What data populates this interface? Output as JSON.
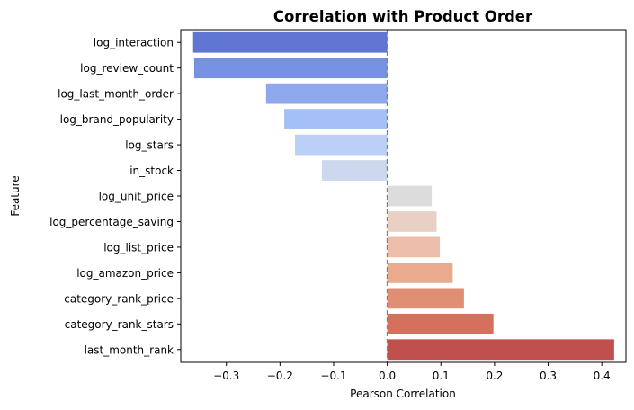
{
  "chart_data": {
    "type": "bar",
    "orientation": "horizontal",
    "title": "Correlation with Product Order",
    "xlabel": "Pearson Correlation",
    "ylabel": "Feature",
    "xlim": [
      -0.385,
      0.445
    ],
    "xticks": [
      -0.3,
      -0.2,
      -0.1,
      0.0,
      0.1,
      0.2,
      0.3,
      0.4
    ],
    "xtick_labels": [
      "−0.3",
      "−0.2",
      "−0.1",
      "0.0",
      "0.1",
      "0.2",
      "0.3",
      "0.4"
    ],
    "reference_line": {
      "x": 0,
      "style": "dashed",
      "color": "#808080"
    },
    "grid": false,
    "categories": [
      "log_interaction",
      "log_review_count",
      "log_last_month_order",
      "log_brand_popularity",
      "log_stars",
      "in_stock",
      "log_unit_price",
      "log_percentage_saving",
      "log_list_price",
      "log_amazon_price",
      "category_rank_price",
      "category_rank_stars",
      "last_month_rank"
    ],
    "values": [
      -0.362,
      -0.36,
      -0.226,
      -0.192,
      -0.172,
      -0.122,
      0.083,
      0.092,
      0.098,
      0.122,
      0.143,
      0.198,
      0.423
    ],
    "colors": [
      "#6175d3",
      "#7792e0",
      "#8fa8ec",
      "#a4c0f5",
      "#bad0f6",
      "#ccd8ee",
      "#dcdcdc",
      "#e8d0c4",
      "#edbfab",
      "#eaaa8e",
      "#e08f74",
      "#d4705c",
      "#c0504d"
    ]
  }
}
